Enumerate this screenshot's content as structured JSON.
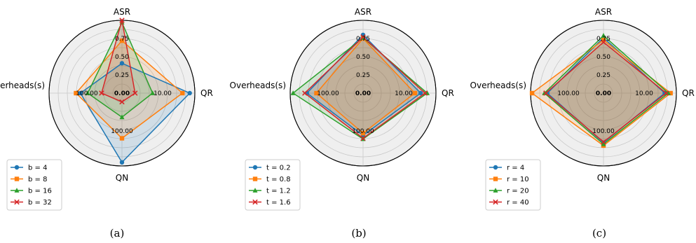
{
  "chart_data": [
    {
      "type": "radar",
      "caption": "(a)",
      "axes": [
        "ASR",
        "QR",
        "QN",
        "Overheads(s)"
      ],
      "radial_tick_labels": [
        "0.00",
        "0.25",
        "0.50",
        "0.75"
      ],
      "qr_tick_label": "10.00",
      "qn_tick_label": "100.00",
      "overheads_tick_label": "100.00",
      "legend_position": "lower-left",
      "grid": true,
      "series": [
        {
          "name": "b = 4",
          "color": "#1f77b4",
          "marker": "circle",
          "values": {
            "ASR": 0.41,
            "QR": 0.93,
            "QN": 0.95,
            "Overheads(s)": 0.57
          }
        },
        {
          "name": "b = 8",
          "color": "#ff7f0e",
          "marker": "square",
          "values": {
            "ASR": 0.72,
            "QR": 0.83,
            "QN": 0.62,
            "Overheads(s)": 0.63
          }
        },
        {
          "name": "b = 16",
          "color": "#2ca02c",
          "marker": "triangle",
          "values": {
            "ASR": 0.97,
            "QR": 0.42,
            "QN": 0.33,
            "Overheads(s)": 0.47
          }
        },
        {
          "name": "b = 32",
          "color": "#d62728",
          "marker": "x",
          "values": {
            "ASR": 1.0,
            "QR": 0.18,
            "QN": 0.12,
            "Overheads(s)": 0.28
          }
        }
      ]
    },
    {
      "type": "radar",
      "caption": "(b)",
      "axes": [
        "ASR",
        "QR",
        "QN",
        "Overheads(s)"
      ],
      "radial_tick_labels": [
        "0.00",
        "0.25",
        "0.50",
        "0.75"
      ],
      "qr_tick_label": "10.00",
      "qn_tick_label": "100.00",
      "overheads_tick_label": "100.00",
      "legend_position": "lower-left",
      "grid": true,
      "series": [
        {
          "name": "t = 0.2",
          "color": "#1f77b4",
          "marker": "circle",
          "values": {
            "ASR": 0.8,
            "QR": 0.79,
            "QN": 0.58,
            "Overheads(s)": 0.77
          }
        },
        {
          "name": "t = 0.8",
          "color": "#ff7f0e",
          "marker": "square",
          "values": {
            "ASR": 0.75,
            "QR": 0.71,
            "QN": 0.55,
            "Overheads(s)": 0.64
          }
        },
        {
          "name": "t = 1.2",
          "color": "#2ca02c",
          "marker": "triangle",
          "values": {
            "ASR": 0.76,
            "QR": 0.88,
            "QN": 0.63,
            "Overheads(s)": 0.96
          }
        },
        {
          "name": "t = 1.6",
          "color": "#d62728",
          "marker": "x",
          "values": {
            "ASR": 0.77,
            "QR": 0.85,
            "QN": 0.62,
            "Overheads(s)": 0.8
          }
        }
      ]
    },
    {
      "type": "radar",
      "caption": "(c)",
      "axes": [
        "ASR",
        "QR",
        "QN",
        "Overheads(s)"
      ],
      "radial_tick_labels": [
        "0.00",
        "0.25",
        "0.50",
        "0.75"
      ],
      "qr_tick_label": "10.00",
      "qn_tick_label": "100.00",
      "overheads_tick_label": "100.00",
      "legend_position": "lower-left",
      "grid": true,
      "series": [
        {
          "name": "r = 4",
          "color": "#1f77b4",
          "marker": "circle",
          "values": {
            "ASR": 0.76,
            "QR": 0.84,
            "QN": 0.68,
            "Overheads(s)": 0.77
          }
        },
        {
          "name": "r = 10",
          "color": "#ff7f0e",
          "marker": "square",
          "values": {
            "ASR": 0.73,
            "QR": 0.92,
            "QN": 0.72,
            "Overheads(s)": 0.98
          }
        },
        {
          "name": "r = 20",
          "color": "#2ca02c",
          "marker": "triangle",
          "values": {
            "ASR": 0.79,
            "QR": 0.89,
            "QN": 0.7,
            "Overheads(s)": 0.81
          }
        },
        {
          "name": "r = 40",
          "color": "#d62728",
          "marker": "x",
          "values": {
            "ASR": 0.7,
            "QR": 0.86,
            "QN": 0.67,
            "Overheads(s)": 0.79
          }
        }
      ]
    }
  ]
}
